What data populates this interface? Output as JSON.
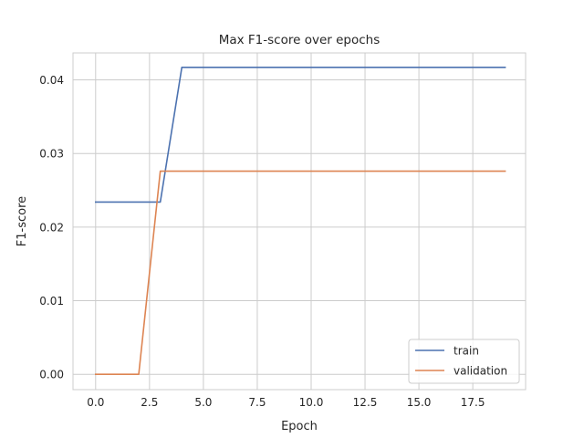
{
  "chart_data": {
    "type": "line",
    "title": "Max F1-score over epochs",
    "xlabel": "Epoch",
    "ylabel": "F1-score",
    "xlim": [
      -1.05,
      19.95
    ],
    "ylim": [
      -0.00208,
      0.04366
    ],
    "xticks": [
      0.0,
      2.5,
      5.0,
      7.5,
      10.0,
      12.5,
      15.0,
      17.5
    ],
    "xtick_labels": [
      "0.0",
      "2.5",
      "5.0",
      "7.5",
      "10.0",
      "12.5",
      "15.0",
      "17.5"
    ],
    "yticks": [
      0.0,
      0.01,
      0.02,
      0.03,
      0.04
    ],
    "ytick_labels": [
      "0.00",
      "0.01",
      "0.02",
      "0.03",
      "0.04"
    ],
    "grid": true,
    "legend_position": "bottom-right",
    "x": [
      0,
      1,
      2,
      3,
      4,
      5,
      6,
      7,
      8,
      9,
      10,
      11,
      12,
      13,
      14,
      15,
      16,
      17,
      18,
      19
    ],
    "series": [
      {
        "name": "train",
        "color": "#4c72b0",
        "values": [
          0.0234,
          0.0234,
          0.0234,
          0.0234,
          0.0417,
          0.0417,
          0.0417,
          0.0417,
          0.0417,
          0.0417,
          0.0417,
          0.0417,
          0.0417,
          0.0417,
          0.0417,
          0.0417,
          0.0417,
          0.0417,
          0.0417,
          0.0417
        ]
      },
      {
        "name": "validation",
        "color": "#dd8452",
        "values": [
          0.0,
          0.0,
          0.0,
          0.0276,
          0.0276,
          0.0276,
          0.0276,
          0.0276,
          0.0276,
          0.0276,
          0.0276,
          0.0276,
          0.0276,
          0.0276,
          0.0276,
          0.0276,
          0.0276,
          0.0276,
          0.0276,
          0.0276
        ]
      }
    ]
  }
}
